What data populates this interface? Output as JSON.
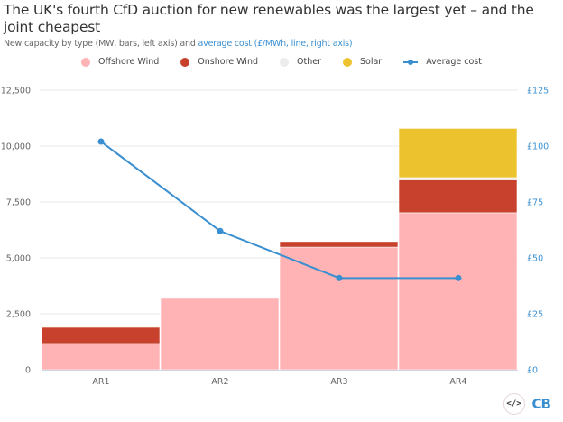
{
  "title": "The UK's fourth CfD auction for new renewables was the largest yet – and the joint cheapest",
  "subtitle_plain": "New capacity by type (MW, bars, left axis) and ",
  "subtitle_highlight": "average cost (£/MWh, line, right axis)",
  "footer": {
    "embed_label": "</>",
    "logo": "CB"
  },
  "colors": {
    "offshore": "#ffb3b5",
    "onshore": "#c7412c",
    "other": "#ececec",
    "solar": "#ecc32e",
    "line": "#3a8fd0"
  },
  "chart_data": {
    "type": "bar",
    "stacked": true,
    "title": "The UK's fourth CfD auction for new renewables was the largest yet – and the joint cheapest",
    "subtitle": "New capacity by type (MW, bars, left axis) and average cost (£/MWh, line, right axis)",
    "categories": [
      "AR1",
      "AR2",
      "AR3",
      "AR4"
    ],
    "series": [
      {
        "name": "Offshore Wind",
        "axis": "left",
        "kind": "bar",
        "color_key": "offshore",
        "values": [
          1170,
          3190,
          5480,
          7020
        ]
      },
      {
        "name": "Onshore Wind",
        "axis": "left",
        "kind": "bar",
        "color_key": "onshore",
        "values": [
          730,
          0,
          250,
          1470
        ]
      },
      {
        "name": "Other",
        "axis": "left",
        "kind": "bar",
        "color_key": "other",
        "values": [
          20,
          0,
          0,
          100
        ]
      },
      {
        "name": "Solar",
        "axis": "left",
        "kind": "bar",
        "color_key": "solar",
        "values": [
          70,
          0,
          0,
          2200
        ]
      },
      {
        "name": "Average cost",
        "axis": "right",
        "kind": "line",
        "color_key": "line",
        "values": [
          102,
          62,
          41,
          41
        ]
      }
    ],
    "left_axis": {
      "label": "MW",
      "range": [
        0,
        12500
      ],
      "ticks": [
        0,
        2500,
        5000,
        7500,
        10000,
        12500
      ],
      "tick_labels": [
        "0",
        "2,500",
        "5,000",
        "7,500",
        "10,000",
        "12,500"
      ]
    },
    "right_axis": {
      "label": "£/MWh",
      "range": [
        0,
        125
      ],
      "ticks": [
        0,
        25,
        50,
        75,
        100,
        125
      ],
      "tick_labels": [
        "£0",
        "£25",
        "£50",
        "£75",
        "£100",
        "£125"
      ]
    },
    "legend": {
      "position": "top-center",
      "entries": [
        "Offshore Wind",
        "Onshore Wind",
        "Other",
        "Solar",
        "Average cost"
      ]
    },
    "grid": true
  }
}
